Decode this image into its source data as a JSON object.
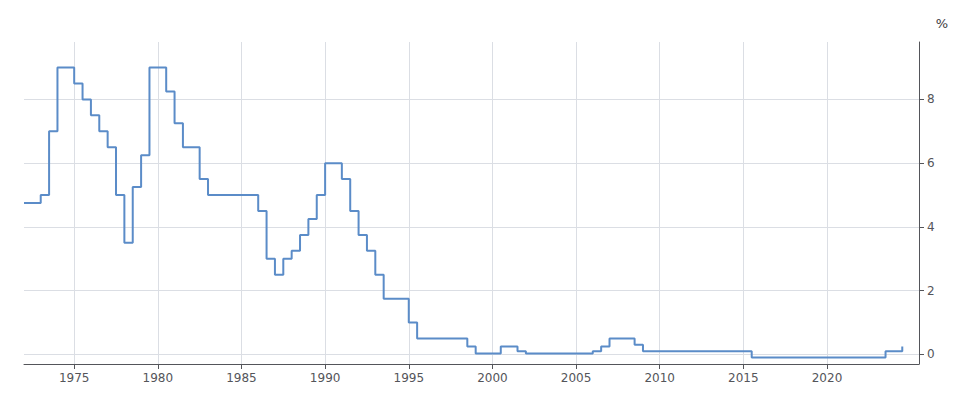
{
  "chart_data": {
    "type": "step",
    "title": "%",
    "color": "#5b8cc8",
    "x": [
      1972.0,
      1973.0,
      1973.5,
      1974.0,
      1974.5,
      1975.0,
      1975.5,
      1976.0,
      1976.5,
      1977.0,
      1977.5,
      1978.0,
      1978.5,
      1979.0,
      1979.5,
      1980.0,
      1980.5,
      1981.0,
      1981.5,
      1982.0,
      1982.5,
      1983.0,
      1983.5,
      1984.0,
      1984.5,
      1985.0,
      1985.5,
      1986.0,
      1986.5,
      1987.0,
      1987.5,
      1988.0,
      1988.5,
      1989.0,
      1989.5,
      1990.0,
      1990.5,
      1991.0,
      1991.5,
      1992.0,
      1992.5,
      1993.0,
      1993.5,
      1994.0,
      1994.5,
      1995.0,
      1995.5,
      1996.0,
      1996.5,
      1997.0,
      1997.5,
      1998.0,
      1998.5,
      1999.0,
      1999.5,
      2000.0,
      2000.5,
      2001.0,
      2001.5,
      2002.0,
      2002.5,
      2003.0,
      2003.5,
      2004.0,
      2004.5,
      2005.0,
      2005.5,
      2006.0,
      2006.5,
      2007.0,
      2007.5,
      2008.0,
      2008.5,
      2009.0,
      2009.5,
      2010.0,
      2010.5,
      2011.0,
      2011.5,
      2012.0,
      2012.5,
      2013.0,
      2013.5,
      2014.0,
      2014.5,
      2015.0,
      2015.5,
      2016.0,
      2016.5,
      2017.0,
      2017.5,
      2018.0,
      2018.5,
      2019.0,
      2019.5,
      2020.0,
      2020.5,
      2021.0,
      2021.5,
      2022.0,
      2022.5,
      2023.0,
      2023.5,
      2024.0,
      2024.5
    ],
    "values": [
      4.75,
      5.0,
      7.0,
      9.0,
      9.0,
      8.5,
      8.0,
      7.5,
      7.0,
      6.5,
      5.0,
      3.5,
      5.25,
      6.25,
      9.0,
      9.0,
      8.25,
      7.25,
      6.5,
      6.5,
      5.5,
      5.0,
      5.0,
      5.0,
      5.0,
      5.0,
      5.0,
      4.5,
      3.0,
      2.5,
      3.0,
      3.25,
      3.75,
      4.25,
      5.0,
      6.0,
      6.0,
      5.5,
      4.5,
      3.75,
      3.25,
      2.5,
      1.75,
      1.75,
      1.75,
      1.0,
      0.5,
      0.5,
      0.5,
      0.5,
      0.5,
      0.5,
      0.25,
      0.03,
      0.03,
      0.03,
      0.25,
      0.25,
      0.1,
      0.03,
      0.03,
      0.03,
      0.03,
      0.03,
      0.03,
      0.03,
      0.03,
      0.1,
      0.25,
      0.5,
      0.5,
      0.5,
      0.3,
      0.1,
      0.1,
      0.1,
      0.1,
      0.1,
      0.1,
      0.1,
      0.1,
      0.1,
      0.1,
      0.1,
      0.1,
      0.1,
      -0.1,
      -0.1,
      -0.1,
      -0.1,
      -0.1,
      -0.1,
      -0.1,
      -0.1,
      -0.1,
      -0.1,
      -0.1,
      -0.1,
      -0.1,
      -0.1,
      -0.1,
      -0.1,
      0.1,
      0.1,
      0.25
    ],
    "xlim": [
      1972.0,
      2025.5
    ],
    "ylim": [
      -0.3,
      9.8
    ],
    "xticks": [
      1975,
      1980,
      1985,
      1990,
      1995,
      2000,
      2005,
      2010,
      2015,
      2020
    ],
    "yticks": [
      0,
      2,
      4,
      6,
      8
    ],
    "grid": true
  }
}
